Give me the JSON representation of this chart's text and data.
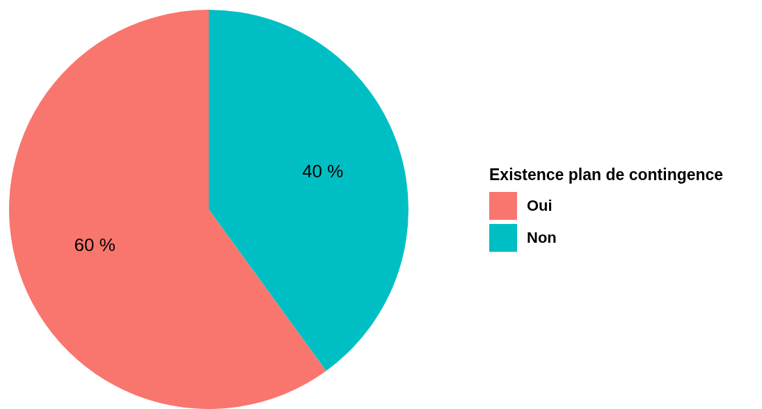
{
  "chart_data": {
    "type": "pie",
    "legend_title": "Existence plan de contingence",
    "categories": [
      "Oui",
      "Non"
    ],
    "values": [
      60,
      40
    ],
    "colors": [
      "#f8766d",
      "#00bfc4"
    ],
    "value_labels": [
      "60 %",
      "40 %"
    ],
    "legend": "right"
  }
}
